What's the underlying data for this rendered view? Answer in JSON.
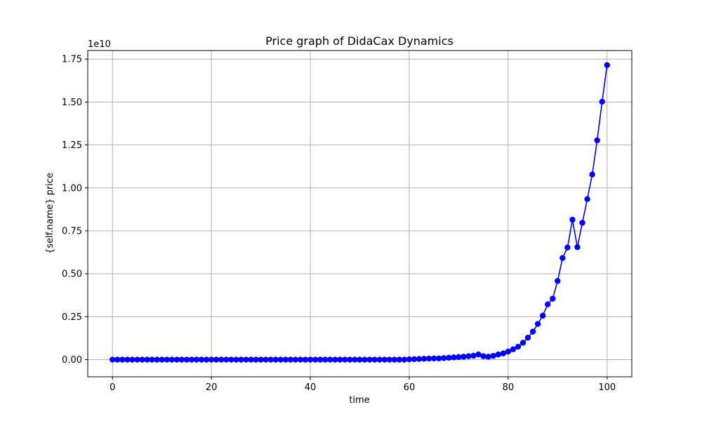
{
  "chart_data": {
    "type": "line",
    "title": "Price graph of DidaCax Dynamics",
    "xlabel": "time",
    "ylabel": "{self.name} price",
    "y_offset_label": "1e10",
    "xlim": [
      -5,
      105
    ],
    "ylim": [
      -0.1,
      1.8
    ],
    "x_ticks": [
      0,
      20,
      40,
      60,
      80,
      100
    ],
    "x_tick_labels": [
      "0",
      "20",
      "40",
      "60",
      "80",
      "100"
    ],
    "y_ticks": [
      0,
      0.25,
      0.5,
      0.75,
      1.0,
      1.25,
      1.5,
      1.75
    ],
    "y_tick_labels": [
      "0.00",
      "0.25",
      "0.50",
      "0.75",
      "1.00",
      "1.25",
      "1.50",
      "1.75"
    ],
    "grid": true,
    "marker": "circle",
    "series_color": "#0000ff",
    "series": [
      {
        "x": [
          0,
          1,
          2,
          3,
          4,
          5,
          6,
          7,
          8,
          9,
          10,
          11,
          12,
          13,
          14,
          15,
          16,
          17,
          18,
          19,
          20,
          21,
          22,
          23,
          24,
          25,
          26,
          27,
          28,
          29,
          30,
          31,
          32,
          33,
          34,
          35,
          36,
          37,
          38,
          39,
          40,
          41,
          42,
          43,
          44,
          45,
          46,
          47,
          48,
          49,
          50,
          51,
          52,
          53,
          54,
          55,
          56,
          57,
          58,
          59,
          60,
          61,
          62,
          63,
          64,
          65,
          66,
          67,
          68,
          69,
          70,
          71,
          72,
          73,
          74,
          75,
          76,
          77,
          78,
          79,
          80,
          81,
          82,
          83,
          84,
          85,
          86,
          87,
          88,
          89,
          90,
          91,
          92,
          93,
          94,
          95,
          96,
          97,
          98,
          99,
          100
        ],
        "y": [
          0,
          0,
          0,
          0,
          0,
          0,
          0,
          0,
          0,
          0,
          0,
          0,
          0,
          0,
          0,
          0,
          0,
          0,
          0,
          0,
          0,
          0,
          0,
          0,
          0,
          0,
          0,
          0,
          0,
          0,
          0,
          0,
          0,
          0,
          0,
          0,
          0,
          0,
          0,
          0,
          0,
          0,
          0,
          0,
          0,
          0,
          0,
          0,
          0,
          0,
          0,
          0,
          0,
          0,
          0,
          0,
          0,
          0,
          0,
          0,
          0.002,
          0.003,
          0.004,
          0.005,
          0.006,
          0.007,
          0.007,
          0.009,
          0.011,
          0.013,
          0.015,
          0.017,
          0.02,
          0.023,
          0.03,
          0.02,
          0.017,
          0.022,
          0.03,
          0.036,
          0.047,
          0.06,
          0.075,
          0.098,
          0.128,
          0.163,
          0.208,
          0.256,
          0.322,
          0.355,
          0.458,
          0.592,
          0.653,
          0.815,
          0.655,
          0.797,
          0.935,
          1.078,
          1.277,
          1.502,
          1.715
        ]
      }
    ]
  }
}
